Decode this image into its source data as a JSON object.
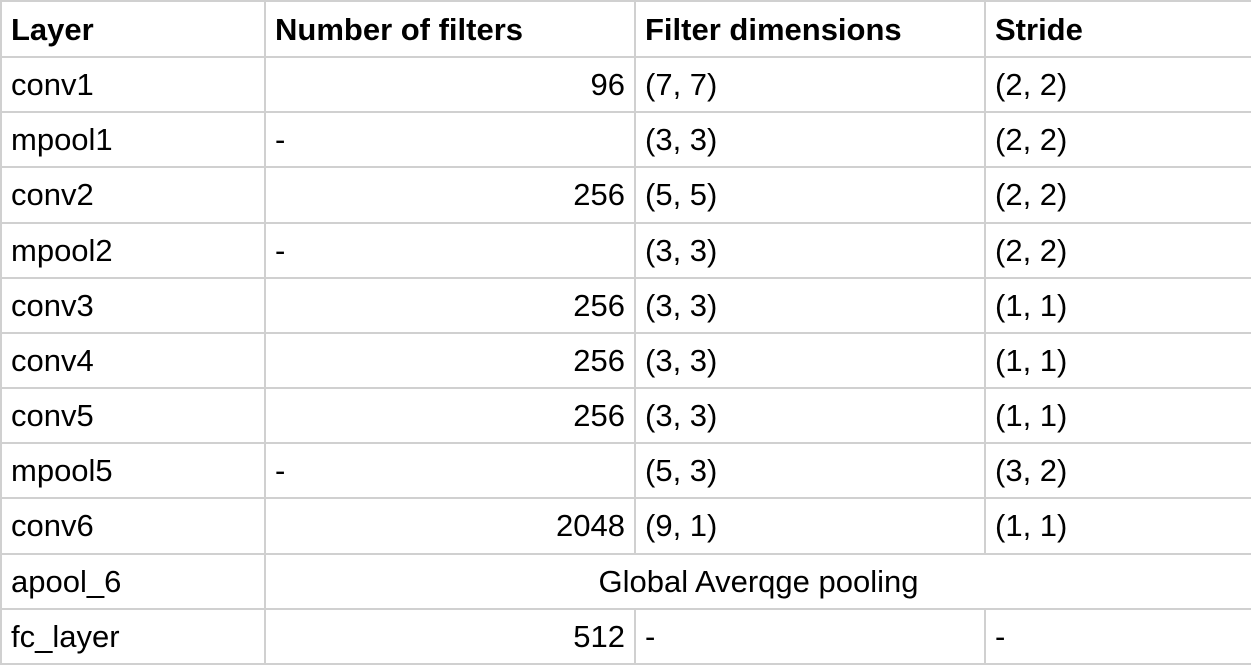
{
  "table": {
    "headers": [
      "Layer",
      "Number of filters",
      "Filter dimensions",
      "Stride"
    ],
    "rows": [
      {
        "layer": "conv1",
        "filters": "96",
        "dims": "(7, 7)",
        "stride": "(2, 2)"
      },
      {
        "layer": "mpool1",
        "filters": "-",
        "dims": "(3, 3)",
        "stride": "(2, 2)"
      },
      {
        "layer": "conv2",
        "filters": "256",
        "dims": "(5, 5)",
        "stride": "(2, 2)"
      },
      {
        "layer": "mpool2",
        "filters": "-",
        "dims": "(3, 3)",
        "stride": "(2, 2)"
      },
      {
        "layer": "conv3",
        "filters": "256",
        "dims": "(3, 3)",
        "stride": "(1, 1)"
      },
      {
        "layer": "conv4",
        "filters": "256",
        "dims": "(3, 3)",
        "stride": "(1, 1)"
      },
      {
        "layer": "conv5",
        "filters": "256",
        "dims": "(3, 3)",
        "stride": "(1, 1)"
      },
      {
        "layer": "mpool5",
        "filters": "-",
        "dims": "(5, 3)",
        "stride": "(3, 2)"
      },
      {
        "layer": "conv6",
        "filters": "2048",
        "dims": "(9, 1)",
        "stride": "(1, 1)"
      }
    ],
    "merged_row": {
      "layer": "apool_6",
      "text": "Global Averqge pooling"
    },
    "last_row": {
      "layer": "fc_layer",
      "filters": "512",
      "dims": "-",
      "stride": "-"
    }
  }
}
